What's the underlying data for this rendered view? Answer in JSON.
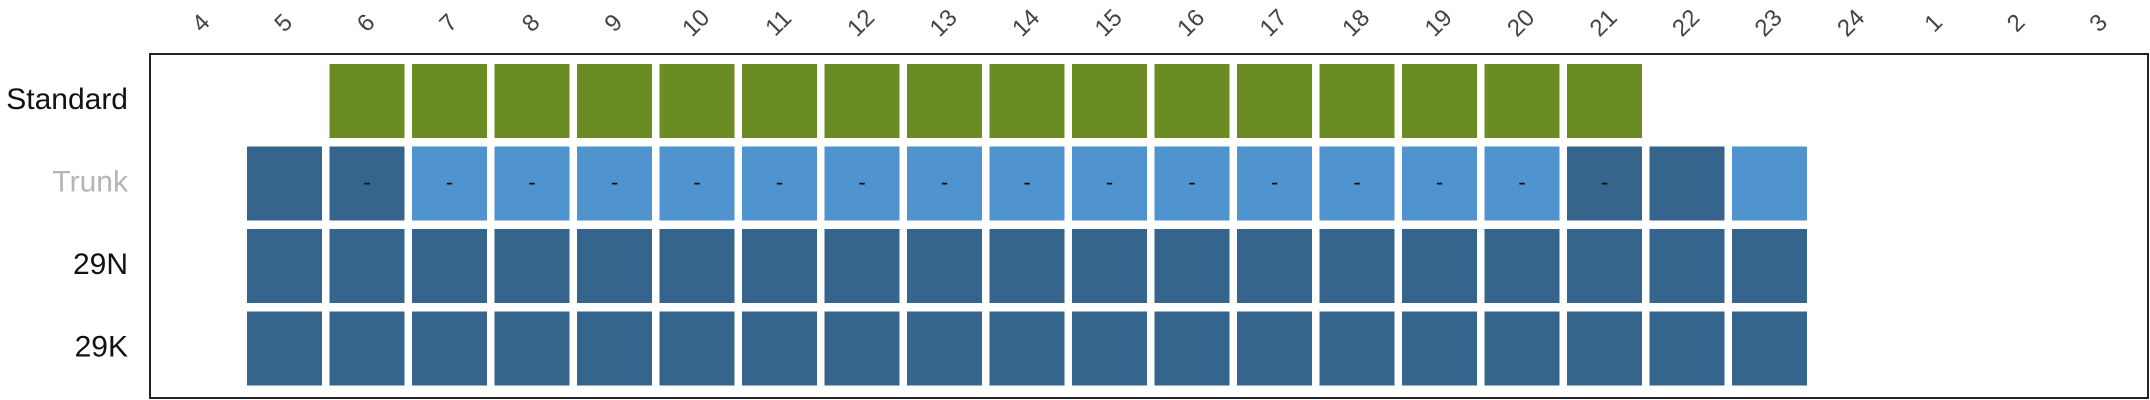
{
  "colors": {
    "green": "#6b8c23",
    "dark_blue": "#35648c",
    "light_blue": "#4f93cf",
    "frame": "#222222",
    "label_dark": "#111111",
    "label_muted": "#b5b5b5"
  },
  "chart_data": {
    "type": "heatmap",
    "title": "",
    "hours": [
      "4",
      "5",
      "6",
      "7",
      "8",
      "9",
      "10",
      "11",
      "12",
      "13",
      "14",
      "15",
      "16",
      "17",
      "18",
      "19",
      "20",
      "21",
      "22",
      "23",
      "24",
      "1",
      "2",
      "3"
    ],
    "rows": [
      {
        "name": "Standard",
        "label_color": "label_dark",
        "cells": [
          {
            "hour": "6",
            "color": "green"
          },
          {
            "hour": "7",
            "color": "green"
          },
          {
            "hour": "8",
            "color": "green"
          },
          {
            "hour": "9",
            "color": "green"
          },
          {
            "hour": "10",
            "color": "green"
          },
          {
            "hour": "11",
            "color": "green"
          },
          {
            "hour": "12",
            "color": "green"
          },
          {
            "hour": "13",
            "color": "green"
          },
          {
            "hour": "14",
            "color": "green"
          },
          {
            "hour": "15",
            "color": "green"
          },
          {
            "hour": "16",
            "color": "green"
          },
          {
            "hour": "17",
            "color": "green"
          },
          {
            "hour": "18",
            "color": "green"
          },
          {
            "hour": "19",
            "color": "green"
          },
          {
            "hour": "20",
            "color": "green"
          },
          {
            "hour": "21",
            "color": "green"
          }
        ]
      },
      {
        "name": "Trunk",
        "label_color": "label_muted",
        "cells": [
          {
            "hour": "5",
            "color": "dark_blue"
          },
          {
            "hour": "6",
            "color": "dark_blue",
            "label": "-"
          },
          {
            "hour": "7",
            "color": "light_blue",
            "label": "-"
          },
          {
            "hour": "8",
            "color": "light_blue",
            "label": "-"
          },
          {
            "hour": "9",
            "color": "light_blue",
            "label": "-"
          },
          {
            "hour": "10",
            "color": "light_blue",
            "label": "-"
          },
          {
            "hour": "11",
            "color": "light_blue",
            "label": "-"
          },
          {
            "hour": "12",
            "color": "light_blue",
            "label": "-"
          },
          {
            "hour": "13",
            "color": "light_blue",
            "label": "-"
          },
          {
            "hour": "14",
            "color": "light_blue",
            "label": "-"
          },
          {
            "hour": "15",
            "color": "light_blue",
            "label": "-"
          },
          {
            "hour": "16",
            "color": "light_blue",
            "label": "-"
          },
          {
            "hour": "17",
            "color": "light_blue",
            "label": "-"
          },
          {
            "hour": "18",
            "color": "light_blue",
            "label": "-"
          },
          {
            "hour": "19",
            "color": "light_blue",
            "label": "-"
          },
          {
            "hour": "20",
            "color": "light_blue",
            "label": "-"
          },
          {
            "hour": "21",
            "color": "dark_blue",
            "label": "-"
          },
          {
            "hour": "22",
            "color": "dark_blue"
          },
          {
            "hour": "23",
            "color": "light_blue"
          }
        ]
      },
      {
        "name": "29N",
        "label_color": "label_dark",
        "cells": [
          {
            "hour": "5",
            "color": "dark_blue"
          },
          {
            "hour": "6",
            "color": "dark_blue"
          },
          {
            "hour": "7",
            "color": "dark_blue"
          },
          {
            "hour": "8",
            "color": "dark_blue"
          },
          {
            "hour": "9",
            "color": "dark_blue"
          },
          {
            "hour": "10",
            "color": "dark_blue"
          },
          {
            "hour": "11",
            "color": "dark_blue"
          },
          {
            "hour": "12",
            "color": "dark_blue"
          },
          {
            "hour": "13",
            "color": "dark_blue"
          },
          {
            "hour": "14",
            "color": "dark_blue"
          },
          {
            "hour": "15",
            "color": "dark_blue"
          },
          {
            "hour": "16",
            "color": "dark_blue"
          },
          {
            "hour": "17",
            "color": "dark_blue"
          },
          {
            "hour": "18",
            "color": "dark_blue"
          },
          {
            "hour": "19",
            "color": "dark_blue"
          },
          {
            "hour": "20",
            "color": "dark_blue"
          },
          {
            "hour": "21",
            "color": "dark_blue"
          },
          {
            "hour": "22",
            "color": "dark_blue"
          },
          {
            "hour": "23",
            "color": "dark_blue"
          }
        ]
      },
      {
        "name": "29K",
        "label_color": "label_dark",
        "cells": [
          {
            "hour": "5",
            "color": "dark_blue"
          },
          {
            "hour": "6",
            "color": "dark_blue"
          },
          {
            "hour": "7",
            "color": "dark_blue"
          },
          {
            "hour": "8",
            "color": "dark_blue"
          },
          {
            "hour": "9",
            "color": "dark_blue"
          },
          {
            "hour": "10",
            "color": "dark_blue"
          },
          {
            "hour": "11",
            "color": "dark_blue"
          },
          {
            "hour": "12",
            "color": "dark_blue"
          },
          {
            "hour": "13",
            "color": "dark_blue"
          },
          {
            "hour": "14",
            "color": "dark_blue"
          },
          {
            "hour": "15",
            "color": "dark_blue"
          },
          {
            "hour": "16",
            "color": "dark_blue"
          },
          {
            "hour": "17",
            "color": "dark_blue"
          },
          {
            "hour": "18",
            "color": "dark_blue"
          },
          {
            "hour": "19",
            "color": "dark_blue"
          },
          {
            "hour": "20",
            "color": "dark_blue"
          },
          {
            "hour": "21",
            "color": "dark_blue"
          },
          {
            "hour": "22",
            "color": "dark_blue"
          },
          {
            "hour": "23",
            "color": "dark_blue"
          }
        ]
      }
    ]
  }
}
